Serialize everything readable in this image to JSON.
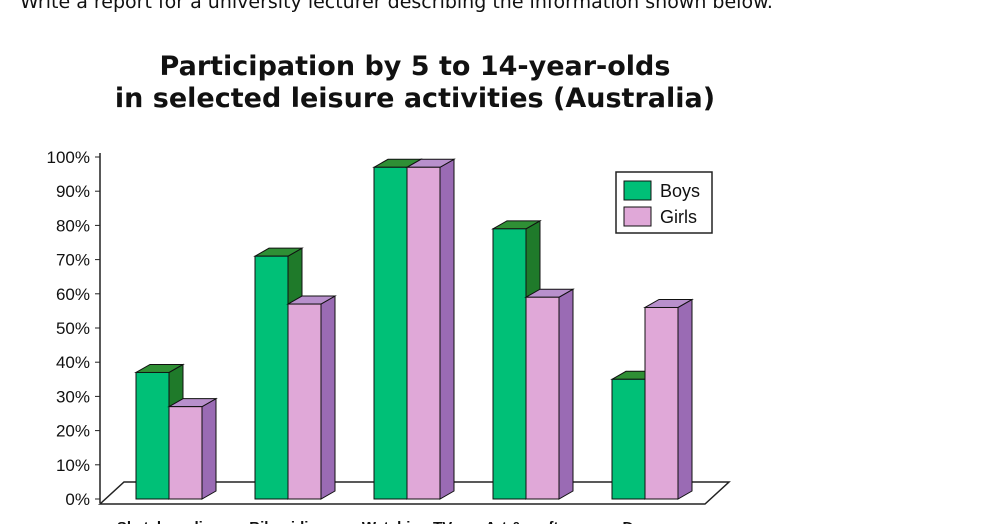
{
  "instruction": "Write a report for a university lecturer describing the information shown below.",
  "colors": {
    "boys_front": "#00c077",
    "boys_side": "#1f7a2a",
    "boys_top": "#2f8f35",
    "girls_front": "#e0a8d8",
    "girls_side": "#9a6bb4",
    "girls_top": "#b890cc"
  },
  "chart_data": {
    "type": "bar",
    "title_line1": "Participation by 5 to 14-year-olds",
    "title_line2": "in selected leisure activities (Australia)",
    "categories": [
      "Skateboarding",
      "Bike riding",
      "Watching TV",
      "Art & crafts",
      "Dance"
    ],
    "series": [
      {
        "name": "Boys",
        "values": [
          37,
          71,
          97,
          79,
          35
        ]
      },
      {
        "name": "Girls",
        "values": [
          27,
          57,
          97,
          59,
          56
        ]
      }
    ],
    "ylim": [
      0,
      100
    ],
    "yticks": [
      "0%",
      "10%",
      "20%",
      "30%",
      "40%",
      "50%",
      "60%",
      "70%",
      "80%",
      "90%",
      "100%"
    ],
    "grid": false,
    "legend_position": "top-right"
  }
}
